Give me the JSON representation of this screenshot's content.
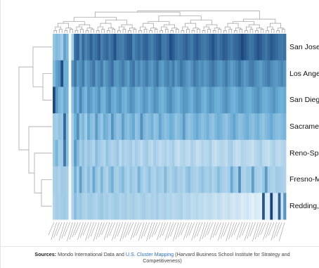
{
  "chart_data": {
    "type": "heatmap",
    "rows": [
      "San Jose-San Francisco-Oakland, CA",
      "Los Angeles-Long Beach, CA",
      "San Diego-Carlsbad, CA",
      "Sacramento-Roseville, CA",
      "Reno-Sparks, NV",
      "Fresno-Madera, CA",
      "Redding, CA"
    ],
    "row_labels_visible": [
      "San Jose-",
      "Los Angel",
      "San Diego",
      "Sacramen",
      "Reno-Spa",
      "Fresno-M",
      "Redding, "
    ],
    "column_count": 88,
    "value_range": [
      0,
      1
    ],
    "color_scale": {
      "low": "#f7fbff",
      "mid": "#6baed6",
      "high": "#08306b"
    },
    "dendrograms": {
      "top": true,
      "left": true
    },
    "values": [
      [
        0.35,
        0.42,
        0.38,
        0.3,
        0.55,
        0.44,
        0.0,
        0.3,
        0.75,
        0.8,
        0.62,
        0.78,
        0.66,
        0.72,
        0.8,
        0.7,
        0.75,
        0.82,
        0.68,
        0.74,
        0.78,
        0.7,
        0.76,
        0.86,
        0.72,
        0.7,
        0.68,
        0.75,
        0.8,
        0.82,
        0.66,
        0.72,
        0.76,
        0.7,
        0.78,
        0.8,
        0.72,
        0.68,
        0.74,
        0.8,
        0.84,
        0.72,
        0.7,
        0.76,
        0.88,
        0.82,
        0.74,
        0.7,
        0.72,
        0.76,
        0.8,
        0.74,
        0.7,
        0.78,
        0.82,
        0.76,
        0.72,
        0.7,
        0.74,
        0.8,
        0.86,
        0.78,
        0.72,
        0.76,
        0.82,
        0.8,
        0.74,
        0.7,
        0.76,
        0.78,
        0.82,
        0.9,
        0.84,
        0.78,
        0.72,
        0.74,
        0.8,
        0.86,
        0.82,
        0.76,
        0.72,
        0.78,
        0.84,
        0.8,
        0.76,
        0.72,
        0.7,
        0.74
      ],
      [
        0.42,
        0.55,
        0.6,
        0.88,
        0.5,
        0.48,
        0.0,
        0.6,
        0.72,
        0.58,
        0.62,
        0.7,
        0.54,
        0.6,
        0.66,
        0.72,
        0.58,
        0.64,
        0.7,
        0.56,
        0.62,
        0.68,
        0.74,
        0.6,
        0.58,
        0.64,
        0.7,
        0.62,
        0.56,
        0.68,
        0.72,
        0.6,
        0.66,
        0.58,
        0.64,
        0.7,
        0.62,
        0.58,
        0.66,
        0.72,
        0.6,
        0.56,
        0.64,
        0.68,
        0.62,
        0.7,
        0.58,
        0.64,
        0.72,
        0.66,
        0.6,
        0.56,
        0.62,
        0.7,
        0.66,
        0.6,
        0.64,
        0.58,
        0.62,
        0.68,
        0.72,
        0.66,
        0.6,
        0.58,
        0.64,
        0.7,
        0.62,
        0.56,
        0.6,
        0.66,
        0.72,
        0.64,
        0.58,
        0.62,
        0.68,
        0.7,
        0.64,
        0.6,
        0.56,
        0.62,
        0.66,
        0.7,
        0.64,
        0.6,
        0.58,
        0.62,
        0.66,
        0.6
      ],
      [
        0.9,
        0.58,
        0.45,
        0.4,
        0.52,
        0.46,
        0.0,
        0.4,
        0.58,
        0.48,
        0.66,
        0.52,
        0.44,
        0.6,
        0.56,
        0.48,
        0.54,
        0.62,
        0.5,
        0.46,
        0.58,
        0.64,
        0.52,
        0.48,
        0.56,
        0.6,
        0.5,
        0.46,
        0.54,
        0.62,
        0.58,
        0.5,
        0.46,
        0.52,
        0.6,
        0.56,
        0.48,
        0.54,
        0.62,
        0.58,
        0.5,
        0.46,
        0.52,
        0.6,
        0.64,
        0.56,
        0.5,
        0.46,
        0.54,
        0.6,
        0.58,
        0.52,
        0.48,
        0.56,
        0.62,
        0.58,
        0.5,
        0.46,
        0.54,
        0.6,
        0.56,
        0.5,
        0.48,
        0.52,
        0.58,
        0.62,
        0.56,
        0.5,
        0.46,
        0.52,
        0.58,
        0.6,
        0.54,
        0.5,
        0.48,
        0.54,
        0.58,
        0.62,
        0.56,
        0.5,
        0.48,
        0.52,
        0.56,
        0.6,
        0.54,
        0.5,
        0.48,
        0.52
      ],
      [
        0.32,
        0.3,
        0.36,
        0.34,
        0.78,
        0.4,
        0.0,
        0.3,
        0.48,
        0.62,
        0.36,
        0.44,
        0.3,
        0.52,
        0.4,
        0.36,
        0.58,
        0.42,
        0.34,
        0.5,
        0.46,
        0.38,
        0.6,
        0.44,
        0.36,
        0.4,
        0.56,
        0.42,
        0.38,
        0.46,
        0.52,
        0.36,
        0.4,
        0.62,
        0.44,
        0.38,
        0.42,
        0.48,
        0.36,
        0.4,
        0.54,
        0.44,
        0.38,
        0.42,
        0.5,
        0.46,
        0.36,
        0.4,
        0.44,
        0.58,
        0.42,
        0.36,
        0.4,
        0.46,
        0.52,
        0.44,
        0.38,
        0.42,
        0.48,
        0.4,
        0.36,
        0.44,
        0.5,
        0.46,
        0.4,
        0.36,
        0.42,
        0.48,
        0.54,
        0.44,
        0.38,
        0.4,
        0.46,
        0.5,
        0.42,
        0.38,
        0.44,
        0.48,
        0.4,
        0.36,
        0.42,
        0.46,
        0.52,
        0.44,
        0.4,
        0.38,
        0.42,
        0.46
      ],
      [
        0.34,
        0.46,
        0.3,
        0.32,
        0.72,
        0.4,
        0.0,
        0.3,
        0.58,
        0.42,
        0.3,
        0.36,
        0.28,
        0.34,
        0.3,
        0.26,
        0.4,
        0.32,
        0.28,
        0.24,
        0.36,
        0.3,
        0.26,
        0.28,
        0.34,
        0.22,
        0.3,
        0.26,
        0.28,
        0.32,
        0.24,
        0.3,
        0.26,
        0.2,
        0.28,
        0.32,
        0.24,
        0.22,
        0.3,
        0.26,
        0.2,
        0.24,
        0.28,
        0.22,
        0.26,
        0.3,
        0.2,
        0.18,
        0.24,
        0.26,
        0.22,
        0.2,
        0.28,
        0.24,
        0.18,
        0.2,
        0.26,
        0.22,
        0.24,
        0.3,
        0.2,
        0.18,
        0.22,
        0.26,
        0.24,
        0.2,
        0.28,
        0.3,
        0.22,
        0.18,
        0.2,
        0.26,
        0.24,
        0.22,
        0.2,
        0.18,
        0.24,
        0.26,
        0.3,
        0.22,
        0.2,
        0.18,
        0.24,
        0.28,
        0.22,
        0.2,
        0.24,
        0.26
      ],
      [
        0.28,
        0.3,
        0.26,
        0.32,
        0.3,
        0.28,
        0.0,
        0.26,
        0.48,
        0.3,
        0.56,
        0.34,
        0.28,
        0.4,
        0.3,
        0.52,
        0.34,
        0.28,
        0.44,
        0.3,
        0.26,
        0.38,
        0.48,
        0.3,
        0.28,
        0.34,
        0.42,
        0.3,
        0.26,
        0.36,
        0.3,
        0.28,
        0.46,
        0.32,
        0.26,
        0.3,
        0.38,
        0.28,
        0.26,
        0.34,
        0.3,
        0.28,
        0.42,
        0.3,
        0.26,
        0.32,
        0.36,
        0.28,
        0.3,
        0.26,
        0.34,
        0.4,
        0.3,
        0.28,
        0.26,
        0.32,
        0.36,
        0.3,
        0.28,
        0.34,
        0.26,
        0.3,
        0.4,
        0.32,
        0.28,
        0.26,
        0.3,
        0.52,
        0.34,
        0.3,
        0.62,
        0.28,
        0.26,
        0.32,
        0.3,
        0.56,
        0.3,
        0.28,
        0.26,
        0.34,
        0.58,
        0.3,
        0.28,
        0.26,
        0.32,
        0.3,
        0.28,
        0.26
      ],
      [
        0.26,
        0.3,
        0.28,
        0.3,
        0.32,
        0.28,
        0.0,
        0.26,
        0.4,
        0.3,
        0.34,
        0.28,
        0.26,
        0.3,
        0.32,
        0.28,
        0.26,
        0.3,
        0.34,
        0.28,
        0.3,
        0.26,
        0.28,
        0.32,
        0.3,
        0.26,
        0.28,
        0.3,
        0.26,
        0.28,
        0.3,
        0.26,
        0.24,
        0.28,
        0.3,
        0.26,
        0.24,
        0.28,
        0.26,
        0.3,
        0.24,
        0.26,
        0.28,
        0.24,
        0.26,
        0.22,
        0.24,
        0.26,
        0.28,
        0.22,
        0.24,
        0.26,
        0.2,
        0.22,
        0.24,
        0.2,
        0.22,
        0.18,
        0.2,
        0.22,
        0.18,
        0.16,
        0.2,
        0.18,
        0.14,
        0.16,
        0.18,
        0.14,
        0.12,
        0.16,
        0.14,
        0.1,
        0.12,
        0.14,
        0.1,
        0.08,
        0.12,
        0.1,
        0.08,
        0.85,
        0.12,
        0.1,
        0.92,
        0.14,
        0.12,
        0.8,
        0.16,
        0.6
      ]
    ]
  },
  "source": {
    "prefix": "Sources:",
    "text_before_link": " Mondo International Data and ",
    "link_text": "U.S. Cluster Mapping",
    "text_after_link": " (Harvard Business School Institute for Strategy and Competitiveness)"
  }
}
